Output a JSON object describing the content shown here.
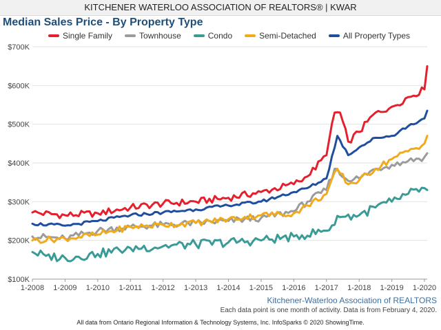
{
  "header": {
    "org_title": "KITCHENER WATERLOO ASSOCIATION OF REALTORS® | KWAR"
  },
  "footer": {
    "source": "Kitchener-Waterloo Association of REALTORS",
    "note": "Each data point is one month of activity. Data is from February 4, 2020.",
    "copyright": "All data from Ontario Regional Information & Technology Systems, Inc. InfoSparks © 2020 ShowingTime."
  },
  "chart_data": {
    "type": "line",
    "title": "Median Sales Price - By Property Type",
    "xlabel": "",
    "ylabel": "",
    "x_start": "1-2008",
    "x_end": "2-2020",
    "x_ticks": [
      "1-2008",
      "1-2009",
      "1-2010",
      "1-2011",
      "1-2012",
      "1-2013",
      "1-2014",
      "1-2015",
      "1-2016",
      "1-2017",
      "1-2018",
      "1-2019",
      "1-2020"
    ],
    "y_ticks": [
      "$100K",
      "$200K",
      "$300K",
      "$400K",
      "$500K",
      "$600K",
      "$700K"
    ],
    "ylim": [
      100000,
      700000
    ],
    "grid": "horizontal",
    "legend_position": "top",
    "series": [
      {
        "name": "Single Family",
        "color": "#e5202e",
        "points": [
          [
            "1-2008",
            272000
          ],
          [
            "1-2009",
            265000
          ],
          [
            "1-2010",
            270000
          ],
          [
            "1-2011",
            285000
          ],
          [
            "1-2012",
            295000
          ],
          [
            "1-2013",
            300000
          ],
          [
            "1-2014",
            310000
          ],
          [
            "1-2015",
            325000
          ],
          [
            "1-2016",
            345000
          ],
          [
            "6-2016",
            365000
          ],
          [
            "1-2017",
            420000
          ],
          [
            "4-2017",
            530000
          ],
          [
            "6-2017",
            530000
          ],
          [
            "9-2017",
            455000
          ],
          [
            "1-2018",
            480000
          ],
          [
            "7-2018",
            530000
          ],
          [
            "1-2019",
            545000
          ],
          [
            "7-2019",
            570000
          ],
          [
            "1-2020",
            590000
          ],
          [
            "2-2020",
            650000
          ]
        ]
      },
      {
        "name": "Townhouse",
        "color": "#9b9b9b",
        "points": [
          [
            "1-2008",
            210000
          ],
          [
            "1-2009",
            205000
          ],
          [
            "1-2010",
            225000
          ],
          [
            "1-2011",
            235000
          ],
          [
            "1-2012",
            240000
          ],
          [
            "1-2013",
            245000
          ],
          [
            "1-2014",
            250000
          ],
          [
            "1-2015",
            258000
          ],
          [
            "1-2016",
            275000
          ],
          [
            "6-2016",
            300000
          ],
          [
            "1-2017",
            330000
          ],
          [
            "4-2017",
            385000
          ],
          [
            "8-2017",
            360000
          ],
          [
            "1-2018",
            360000
          ],
          [
            "7-2018",
            385000
          ],
          [
            "1-2019",
            395000
          ],
          [
            "7-2019",
            405000
          ],
          [
            "1-2020",
            415000
          ],
          [
            "2-2020",
            425000
          ]
        ]
      },
      {
        "name": "Condo",
        "color": "#3a9a96",
        "points": [
          [
            "1-2008",
            170000
          ],
          [
            "6-2008",
            160000
          ],
          [
            "1-2009",
            155000
          ],
          [
            "1-2010",
            165000
          ],
          [
            "1-2011",
            180000
          ],
          [
            "1-2012",
            185000
          ],
          [
            "1-2013",
            190000
          ],
          [
            "1-2014",
            195000
          ],
          [
            "1-2015",
            200000
          ],
          [
            "1-2016",
            210000
          ],
          [
            "1-2017",
            225000
          ],
          [
            "6-2017",
            260000
          ],
          [
            "1-2018",
            265000
          ],
          [
            "7-2018",
            285000
          ],
          [
            "1-2019",
            300000
          ],
          [
            "7-2019",
            320000
          ],
          [
            "1-2020",
            335000
          ],
          [
            "2-2020",
            330000
          ]
        ]
      },
      {
        "name": "Semi-Detached",
        "color": "#f0aa1a",
        "points": [
          [
            "1-2008",
            200000
          ],
          [
            "1-2009",
            205000
          ],
          [
            "1-2010",
            215000
          ],
          [
            "1-2011",
            235000
          ],
          [
            "1-2012",
            240000
          ],
          [
            "1-2013",
            245000
          ],
          [
            "1-2014",
            255000
          ],
          [
            "1-2015",
            265000
          ],
          [
            "1-2016",
            270000
          ],
          [
            "6-2016",
            290000
          ],
          [
            "1-2017",
            320000
          ],
          [
            "5-2017",
            385000
          ],
          [
            "9-2017",
            345000
          ],
          [
            "1-2018",
            355000
          ],
          [
            "7-2018",
            385000
          ],
          [
            "1-2019",
            410000
          ],
          [
            "7-2019",
            430000
          ],
          [
            "1-2020",
            450000
          ],
          [
            "2-2020",
            470000
          ]
        ]
      },
      {
        "name": "All Property Types",
        "color": "#1f4e9e",
        "points": [
          [
            "1-2008",
            243000
          ],
          [
            "1-2009",
            238000
          ],
          [
            "1-2010",
            250000
          ],
          [
            "1-2011",
            265000
          ],
          [
            "1-2012",
            272000
          ],
          [
            "1-2013",
            280000
          ],
          [
            "1-2014",
            290000
          ],
          [
            "1-2015",
            300000
          ],
          [
            "1-2016",
            325000
          ],
          [
            "6-2016",
            335000
          ],
          [
            "1-2017",
            360000
          ],
          [
            "5-2017",
            470000
          ],
          [
            "9-2017",
            420000
          ],
          [
            "1-2018",
            440000
          ],
          [
            "7-2018",
            465000
          ],
          [
            "1-2019",
            470000
          ],
          [
            "7-2019",
            495000
          ],
          [
            "1-2020",
            515000
          ],
          [
            "2-2020",
            535000
          ]
        ]
      }
    ]
  }
}
